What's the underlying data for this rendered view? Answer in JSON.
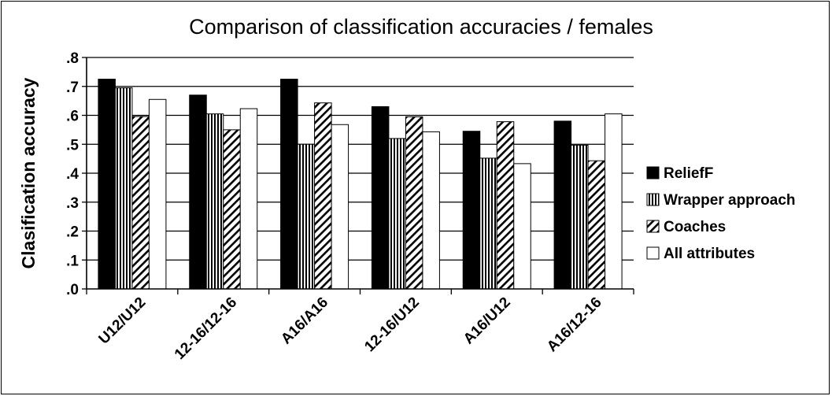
{
  "chart_data": {
    "type": "bar",
    "title": "Comparison of classification accuracies / females",
    "xlabel": "",
    "ylabel": "Clasification accuracy",
    "ylim": [
      0,
      0.8
    ],
    "yticks": [
      ".0",
      ".1",
      ".2",
      ".3",
      ".4",
      ".5",
      ".6",
      ".7",
      ".8"
    ],
    "grid": "horizontal",
    "legend_position": "right",
    "categories": [
      "U12/U12",
      "12-16/12-16",
      "A16/A16",
      "12-16/U12",
      "A16/U12",
      "A16/12-16"
    ],
    "series": [
      {
        "name": "ReliefF",
        "values": [
          0.725,
          0.67,
          0.725,
          0.63,
          0.545,
          0.58
        ],
        "fill": "solid-black"
      },
      {
        "name": "Wrapper approach",
        "values": [
          0.695,
          0.605,
          0.5,
          0.52,
          0.452,
          0.497
        ],
        "fill": "vertical-stripes"
      },
      {
        "name": "Coaches",
        "values": [
          0.596,
          0.55,
          0.643,
          0.595,
          0.578,
          0.443
        ],
        "fill": "diagonal-hatch"
      },
      {
        "name": "All attributes",
        "values": [
          0.655,
          0.623,
          0.568,
          0.543,
          0.433,
          0.605
        ],
        "fill": "white"
      }
    ]
  }
}
